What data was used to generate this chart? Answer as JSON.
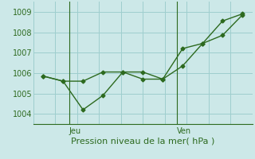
{
  "line1_x": [
    0,
    1,
    2,
    3,
    4,
    5,
    6,
    7,
    8,
    9,
    10
  ],
  "line1_y": [
    1005.85,
    1005.6,
    1005.6,
    1006.05,
    1006.05,
    1005.7,
    1005.7,
    1007.2,
    1007.45,
    1007.85,
    1008.85
  ],
  "line2_x": [
    0,
    1,
    2,
    3,
    4,
    5,
    6,
    7,
    8,
    9,
    10
  ],
  "line2_y": [
    1005.85,
    1005.6,
    1004.2,
    1004.9,
    1006.05,
    1006.05,
    1005.7,
    1006.35,
    1007.45,
    1008.55,
    1008.9
  ],
  "line_color": "#2d6a1f",
  "bg_color": "#cce8e8",
  "grid_color": "#9ecece",
  "xlabel": "Pression niveau de la mer( hPa )",
  "ylim": [
    1003.5,
    1009.5
  ],
  "yticks": [
    1004,
    1005,
    1006,
    1007,
    1008,
    1009
  ],
  "xlim": [
    -0.5,
    10.5
  ],
  "jeu_x": 1.3,
  "ven_x": 6.7,
  "jeu_label": "Jeu",
  "ven_label": "Ven",
  "marker": "D",
  "marker_size": 2.5,
  "linewidth": 1.0,
  "xlabel_fontsize": 8,
  "tick_fontsize": 7
}
